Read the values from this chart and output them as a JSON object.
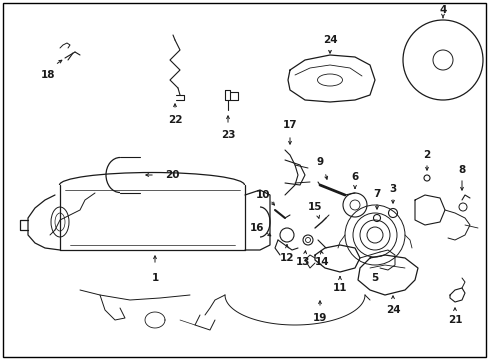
{
  "background_color": "#ffffff",
  "border_color": "#000000",
  "figsize": [
    4.89,
    3.6
  ],
  "dpi": 100,
  "lc": "#1a1a1a",
  "lw": 0.7,
  "fs": 7.0
}
